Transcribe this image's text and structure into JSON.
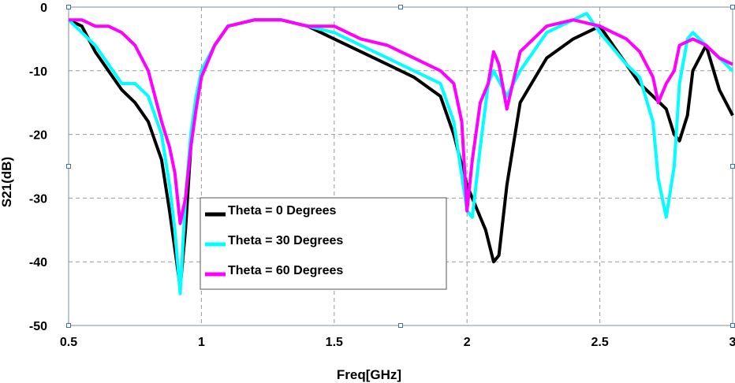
{
  "chart_data": {
    "type": "line",
    "xlabel": "Freq[GHz]",
    "ylabel": "S21(dB)",
    "xlim": [
      0.5,
      3
    ],
    "ylim": [
      -50,
      0
    ],
    "xticks": [
      "0.5",
      "1",
      "1.5",
      "2",
      "2.5",
      "3"
    ],
    "yticks": [
      "0",
      "-10",
      "-20",
      "-30",
      "-40",
      "-50"
    ],
    "grid": true,
    "legend_position": "center",
    "series": [
      {
        "name": "Theta = 0 Degrees",
        "color": "#000000",
        "x": [
          0.5,
          0.55,
          0.6,
          0.65,
          0.7,
          0.75,
          0.8,
          0.85,
          0.88,
          0.9,
          0.92,
          0.94,
          0.96,
          0.98,
          1.0,
          1.05,
          1.1,
          1.2,
          1.3,
          1.4,
          1.5,
          1.6,
          1.7,
          1.8,
          1.9,
          1.95,
          2.0,
          2.02,
          2.05,
          2.07,
          2.1,
          2.12,
          2.15,
          2.2,
          2.3,
          2.4,
          2.5,
          2.55,
          2.6,
          2.65,
          2.7,
          2.75,
          2.78,
          2.8,
          2.83,
          2.85,
          2.9,
          2.95,
          3.0
        ],
        "y": [
          -2,
          -3,
          -7,
          -10,
          -13,
          -15,
          -18,
          -24,
          -32,
          -38,
          -44,
          -35,
          -22,
          -15,
          -10,
          -6,
          -3,
          -2,
          -2,
          -3,
          -5,
          -7,
          -9,
          -11,
          -14,
          -20,
          -28,
          -30,
          -33,
          -35,
          -40,
          -39,
          -28,
          -15,
          -8,
          -5,
          -3,
          -6,
          -9,
          -12,
          -14,
          -16,
          -20,
          -21,
          -17,
          -10,
          -6,
          -13,
          -17
        ]
      },
      {
        "name": "Theta = 30 Degrees",
        "color": "#00ffff",
        "x": [
          0.5,
          0.55,
          0.6,
          0.65,
          0.7,
          0.75,
          0.8,
          0.85,
          0.88,
          0.9,
          0.92,
          0.94,
          0.96,
          0.98,
          1.0,
          1.05,
          1.1,
          1.2,
          1.3,
          1.4,
          1.5,
          1.6,
          1.7,
          1.8,
          1.9,
          1.95,
          2.0,
          2.02,
          2.05,
          2.08,
          2.1,
          2.15,
          2.2,
          2.3,
          2.4,
          2.45,
          2.5,
          2.6,
          2.65,
          2.7,
          2.72,
          2.75,
          2.78,
          2.8,
          2.83,
          2.85,
          2.9,
          3.0
        ],
        "y": [
          -2,
          -4,
          -6,
          -9,
          -12,
          -12,
          -14,
          -20,
          -28,
          -35,
          -45,
          -30,
          -20,
          -14,
          -10,
          -6,
          -3,
          -2,
          -2,
          -3,
          -4,
          -6,
          -8,
          -10,
          -12,
          -18,
          -32,
          -33,
          -22,
          -12,
          -10,
          -14,
          -10,
          -4,
          -2,
          -1,
          -4,
          -9,
          -11,
          -18,
          -27,
          -33,
          -25,
          -12,
          -5,
          -4,
          -6,
          -10
        ]
      },
      {
        "name": "Theta = 60 Degrees",
        "color": "#ff00ff",
        "x": [
          0.5,
          0.55,
          0.6,
          0.65,
          0.7,
          0.75,
          0.8,
          0.85,
          0.88,
          0.9,
          0.92,
          0.94,
          0.96,
          0.98,
          1.0,
          1.05,
          1.1,
          1.2,
          1.3,
          1.4,
          1.5,
          1.6,
          1.7,
          1.8,
          1.9,
          1.95,
          1.98,
          2.0,
          2.02,
          2.05,
          2.08,
          2.1,
          2.12,
          2.15,
          2.2,
          2.3,
          2.4,
          2.5,
          2.6,
          2.65,
          2.7,
          2.72,
          2.75,
          2.78,
          2.8,
          2.85,
          2.9,
          2.95,
          3.0
        ],
        "y": [
          -2,
          -2,
          -3,
          -3,
          -4,
          -6,
          -10,
          -18,
          -22,
          -26,
          -34,
          -30,
          -22,
          -16,
          -11,
          -6,
          -3,
          -2,
          -2,
          -3,
          -3,
          -5,
          -6,
          -8,
          -10,
          -12,
          -18,
          -32,
          -24,
          -15,
          -12,
          -7,
          -9,
          -16,
          -7,
          -3,
          -2,
          -3,
          -5,
          -7,
          -11,
          -15,
          -12,
          -10,
          -6,
          -5,
          -6,
          -8,
          -9
        ]
      }
    ]
  }
}
